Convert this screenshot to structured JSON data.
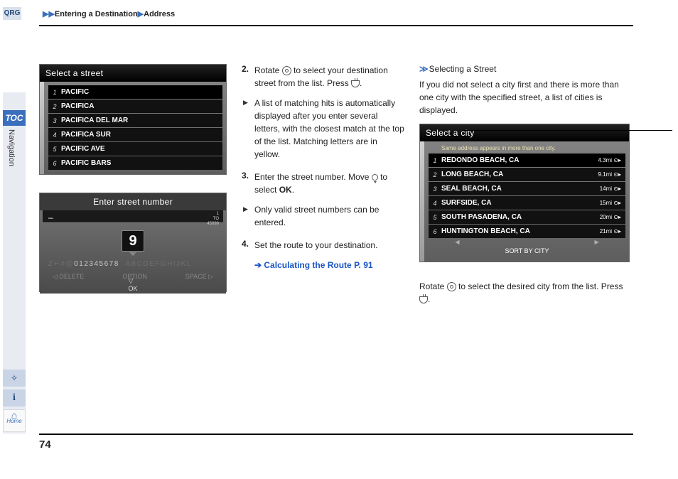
{
  "breadcrumb": {
    "seg1": "Entering a Destination",
    "seg2": "Address"
  },
  "sidebar": {
    "qrg": "QRG",
    "toc": "TOC",
    "nav": "Navigation",
    "home": "Home"
  },
  "pagenum": "74",
  "screen1": {
    "title": "Select a street",
    "items": [
      {
        "n": "1",
        "label": "PACIFIC"
      },
      {
        "n": "2",
        "label": "PACIFICA"
      },
      {
        "n": "3",
        "label": "PACIFICA DEL MAR"
      },
      {
        "n": "4",
        "label": "PACIFICA SUR"
      },
      {
        "n": "5",
        "label": "PACIFIC AVE"
      },
      {
        "n": "6",
        "label": "PACIFIC BARS"
      }
    ]
  },
  "screen2": {
    "title": "Enter street number",
    "range1": "1",
    "rangeTo": "TO",
    "range2": "45099",
    "digit": "9",
    "nums": "012345678",
    "prefix": "Z↵#@",
    "alpha": "ABCDEFGHIJKL",
    "delete": "DELETE",
    "option": "OPTION",
    "space": "SPACE",
    "ok": "OK",
    "dash": "–"
  },
  "screen3": {
    "title": "Select a city",
    "sub": "Same address appears in more than one city.",
    "items": [
      {
        "n": "1",
        "label": "REDONDO BEACH, CA",
        "d": "4.3mi"
      },
      {
        "n": "2",
        "label": "LONG BEACH, CA",
        "d": "9.1mi"
      },
      {
        "n": "3",
        "label": "SEAL BEACH, CA",
        "d": "14mi"
      },
      {
        "n": "4",
        "label": "SURFSIDE, CA",
        "d": "15mi"
      },
      {
        "n": "5",
        "label": "SOUTH PASADENA, CA",
        "d": "20mi"
      },
      {
        "n": "6",
        "label": "HUNTINGTON BEACH, CA",
        "d": "21mi"
      }
    ],
    "sort": "SORT BY CITY"
  },
  "steps": {
    "s2a": "Rotate ",
    "s2b": " to select your destination street from the list. Press ",
    "s2c": ".",
    "s2sub": "A list of matching hits is automatically displayed after you enter several letters, with the closest match at the top of the list. Matching letters are in yellow.",
    "s3a": "Enter the street number. Move ",
    "s3b": " to select ",
    "s3ok": "OK",
    "s3c": ".",
    "s3sub": "Only valid street numbers can be entered.",
    "s4": "Set the route to your destination.",
    "xref": "Calculating the Route",
    "xrefpg": "P. 91"
  },
  "note": {
    "hdr": "Selecting a Street",
    "body": "If you did not select a city first and there is more than one city with the specified street, a list of cities is displayed.",
    "cap1": "Rotate ",
    "cap2": " to select the desired city from the list. Press ",
    "cap3": "."
  }
}
